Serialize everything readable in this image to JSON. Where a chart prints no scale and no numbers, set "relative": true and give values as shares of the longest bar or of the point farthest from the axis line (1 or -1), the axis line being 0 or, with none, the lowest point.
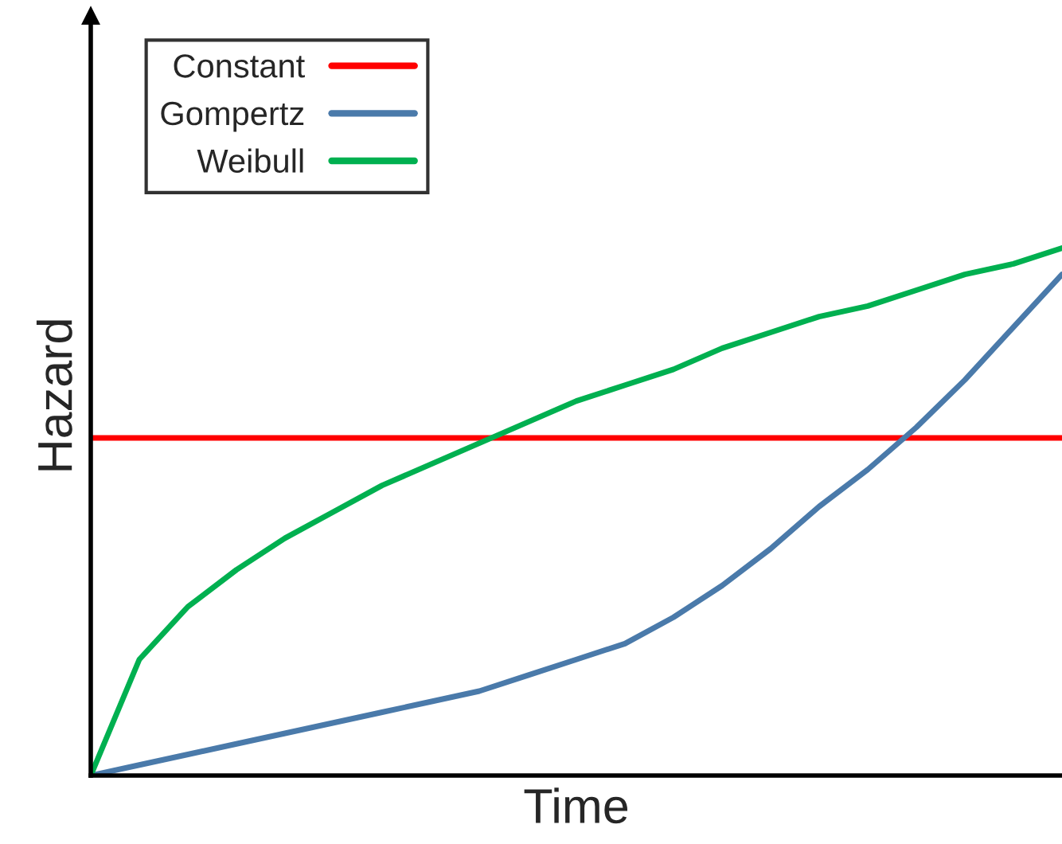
{
  "chart_data": {
    "type": "line",
    "relative": true,
    "xlabel": "Time",
    "ylabel": "Hazard",
    "legend": "top left",
    "grid": false,
    "categories": [
      null,
      null,
      null,
      null,
      null,
      null,
      null,
      null,
      null,
      null,
      null,
      null,
      null,
      null,
      null,
      null,
      null,
      null,
      null,
      null,
      null
    ],
    "series": [
      {
        "name": "Constant",
        "color": "#ff0000",
        "values": [
          0.64,
          0.64,
          0.64,
          0.64,
          0.64,
          0.64,
          0.64,
          0.64,
          0.64,
          0.64,
          0.64,
          0.64,
          0.64,
          0.64,
          0.64,
          0.64,
          0.64,
          0.64,
          0.64,
          0.64,
          0.64
        ]
      },
      {
        "name": "Gompertz",
        "color": "#4a7aaa",
        "values": [
          0,
          0.02,
          0.04,
          0.06,
          0.08,
          0.1,
          0.12,
          0.14,
          0.16,
          0.19,
          0.22,
          0.25,
          0.3,
          0.36,
          0.43,
          0.51,
          0.58,
          0.66,
          0.75,
          0.85,
          0.95
        ]
      },
      {
        "name": "Weibull",
        "color": "#00b050",
        "values": [
          0,
          0.22,
          0.32,
          0.39,
          0.45,
          0.5,
          0.55,
          0.59,
          0.63,
          0.67,
          0.71,
          0.74,
          0.77,
          0.81,
          0.84,
          0.87,
          0.89,
          0.92,
          0.95,
          0.97,
          1.0
        ]
      }
    ]
  }
}
